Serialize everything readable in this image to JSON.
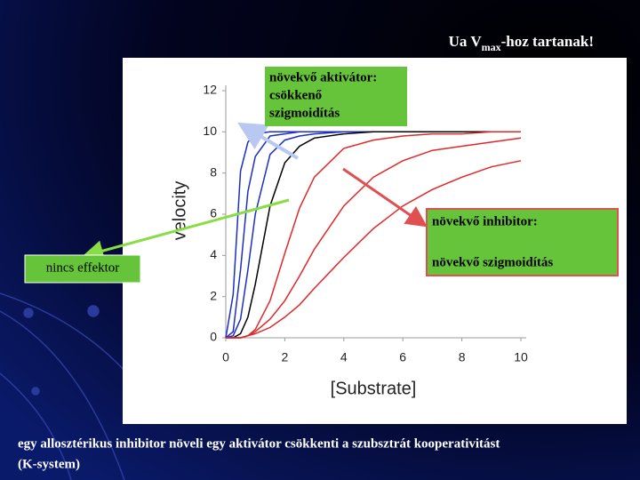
{
  "chart_data": {
    "type": "line",
    "title": {
      "pre": "Ua V",
      "sub": "max",
      "post": "-hoz tartanak!"
    },
    "x_label": "[Substrate]",
    "y_label": "velocity",
    "x": [
      0,
      0.25,
      0.5,
      0.75,
      1,
      1.5,
      2,
      2.5,
      3,
      4,
      5,
      6,
      7,
      8,
      9,
      10
    ],
    "series": [
      {
        "color": "#1c2fc4",
        "values": [
          0,
          2.1,
          8.1,
          9.5,
          9.9,
          10,
          10,
          10,
          10,
          10,
          10,
          10,
          10,
          10,
          10,
          10
        ]
      },
      {
        "color": "#1c2fc4",
        "values": [
          0,
          0.3,
          3.3,
          7.1,
          8.8,
          9.8,
          9.9,
          10,
          10,
          10,
          10,
          10,
          10,
          10,
          10,
          10
        ]
      },
      {
        "color": "#1c2fc4",
        "values": [
          0,
          0.1,
          0.9,
          3.3,
          6.0,
          8.9,
          9.6,
          9.8,
          9.9,
          10,
          10,
          10,
          10,
          10,
          10,
          10
        ]
      },
      {
        "color": "#000000",
        "values": [
          0,
          0,
          0.2,
          1.0,
          2.6,
          6.4,
          8.5,
          9.3,
          9.7,
          9.9,
          10,
          10,
          10,
          10,
          10,
          10
        ]
      },
      {
        "color": "#e02828",
        "values": [
          0,
          0,
          0,
          0.1,
          0.4,
          1.8,
          4.1,
          6.3,
          7.8,
          9.2,
          9.6,
          9.8,
          9.9,
          9.9,
          10,
          10
        ]
      },
      {
        "color": "#e02828",
        "values": [
          0,
          0,
          0,
          0.1,
          0.3,
          0.9,
          1.8,
          3.0,
          4.3,
          6.4,
          7.8,
          8.6,
          9.1,
          9.3,
          9.5,
          9.7
        ]
      },
      {
        "color": "#e02828",
        "values": [
          0,
          0,
          0,
          0.1,
          0.2,
          0.5,
          1.0,
          1.6,
          2.4,
          3.9,
          5.3,
          6.4,
          7.2,
          7.8,
          8.3,
          8.6
        ]
      }
    ],
    "xlim": [
      0,
      10
    ],
    "xticks": [
      0,
      2,
      4,
      6,
      8,
      10
    ],
    "ylim": [
      0,
      12
    ],
    "yticks": [
      0,
      2,
      4,
      6,
      8,
      10,
      12
    ],
    "grid": false,
    "annotations": {
      "activator": [
        "növekvő aktivátor:",
        "csökkenő",
        "szigmoidítás"
      ],
      "inhibitor": [
        "növekvő inhibitor:",
        "növekvő szigmoidítás"
      ],
      "none": [
        "nincs effektor"
      ]
    },
    "caption": [
      "egy allosztérikus inhibitor növeli egy aktivátor csökkenti a szubsztrát kooperativitást",
      "(K-system)"
    ]
  }
}
